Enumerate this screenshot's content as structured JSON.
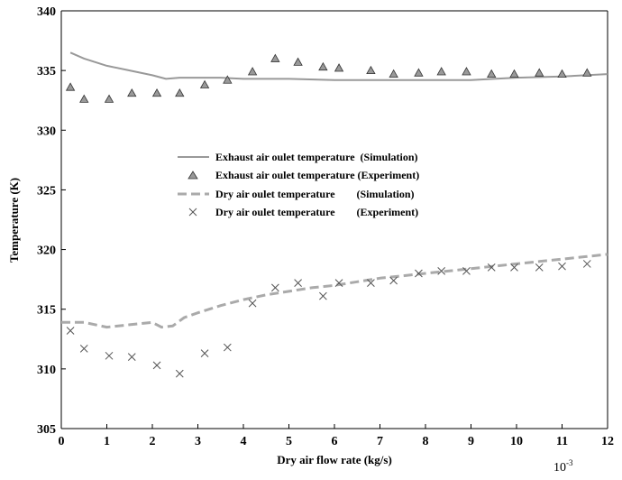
{
  "chart_data": {
    "type": "line",
    "title": "",
    "xlabel": "Dry air flow rate (kg/s)",
    "ylabel": "Temperature (K)",
    "x_multiplier": "10",
    "x_multiplier_exp": "-3",
    "xlim": [
      0,
      12
    ],
    "ylim": [
      305,
      340
    ],
    "x_ticks": [
      "0",
      "1",
      "2",
      "3",
      "4",
      "5",
      "6",
      "7",
      "8",
      "9",
      "10",
      "11",
      "12"
    ],
    "y_ticks": [
      "305",
      "310",
      "315",
      "320",
      "325",
      "330",
      "335",
      "340"
    ],
    "grid": false,
    "legend_position": "center",
    "colors": {
      "exhaust_line": "#999999",
      "dry_line": "#aaaaaa",
      "marker": "#555555",
      "triangle_fill": "#999999"
    },
    "series": [
      {
        "name": "Exhaust air oulet temperature  (Simulation)",
        "style": "solid-line",
        "x": [
          0.2,
          0.5,
          1.0,
          1.5,
          2.0,
          2.3,
          2.6,
          3.0,
          3.5,
          4.0,
          5.0,
          6.0,
          7.0,
          8.0,
          9.0,
          9.5,
          10.0,
          11.0,
          12.0
        ],
        "y": [
          336.5,
          336.0,
          335.4,
          335.0,
          334.6,
          334.3,
          334.4,
          334.4,
          334.4,
          334.3,
          334.3,
          334.2,
          334.2,
          334.2,
          334.2,
          334.3,
          334.4,
          334.5,
          334.7
        ]
      },
      {
        "name": "Exhaust air oulet temperature (Experiment)",
        "style": "triangle",
        "x": [
          0.2,
          0.5,
          1.05,
          1.55,
          2.1,
          2.6,
          3.15,
          3.65,
          4.2,
          4.7,
          5.2,
          5.75,
          6.1,
          6.8,
          7.3,
          7.85,
          8.35,
          8.9,
          9.45,
          9.95,
          10.5,
          11.0,
          11.55
        ],
        "y": [
          333.6,
          332.6,
          332.6,
          333.1,
          333.1,
          333.1,
          333.8,
          334.2,
          334.9,
          336.0,
          335.7,
          335.3,
          335.2,
          335.0,
          334.7,
          334.8,
          334.9,
          334.9,
          334.7,
          334.7,
          334.8,
          334.7,
          334.8
        ]
      },
      {
        "name": "Dry air oulet temperature        (Simulation)",
        "style": "dashed-line",
        "x": [
          0.0,
          0.5,
          1.0,
          1.5,
          2.0,
          2.2,
          2.45,
          2.7,
          3.0,
          3.5,
          4.0,
          4.5,
          5.0,
          5.5,
          6.0,
          6.5,
          7.0,
          7.5,
          8.0,
          8.5,
          9.0,
          9.5,
          10.0,
          10.5,
          11.0,
          11.5,
          12.0
        ],
        "y": [
          313.9,
          313.9,
          313.5,
          313.7,
          313.9,
          313.5,
          313.6,
          314.3,
          314.7,
          315.3,
          315.8,
          316.2,
          316.5,
          316.8,
          317.0,
          317.3,
          317.6,
          317.8,
          318.0,
          318.2,
          318.4,
          318.6,
          318.8,
          319.0,
          319.2,
          319.4,
          319.6
        ]
      },
      {
        "name": "Dry air oulet temperature        (Experiment)",
        "style": "cross",
        "x": [
          0.2,
          0.5,
          1.05,
          1.55,
          2.1,
          2.6,
          3.15,
          3.65,
          4.2,
          4.7,
          5.2,
          5.75,
          6.1,
          6.8,
          7.3,
          7.85,
          8.35,
          8.9,
          9.45,
          9.95,
          10.5,
          11.0,
          11.55
        ],
        "y": [
          313.2,
          311.7,
          311.1,
          311.0,
          310.3,
          309.6,
          311.3,
          311.8,
          315.5,
          316.8,
          317.2,
          316.1,
          317.2,
          317.2,
          317.4,
          318.0,
          318.2,
          318.2,
          318.5,
          318.5,
          318.5,
          318.6,
          318.8
        ]
      }
    ]
  }
}
